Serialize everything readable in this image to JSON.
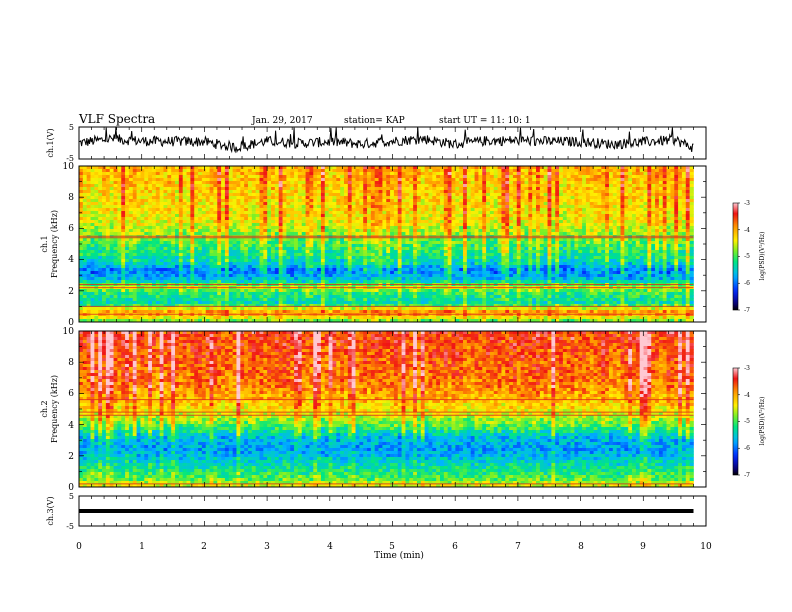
{
  "header": {
    "title": "VLF Spectra",
    "date": "Jan. 29, 2017",
    "station": "station= KAP",
    "start_ut": "start  UT  =   11: 10: 1"
  },
  "chart_data": [
    {
      "type": "line",
      "ylabel": "ch.1(V)",
      "ylim": [
        -5,
        5
      ],
      "yticks": [
        "5",
        "-5"
      ],
      "xlim": [
        0,
        10
      ],
      "series": [
        {
          "color": "#000000",
          "x": [
            0,
            0.5,
            1,
            1.5,
            2,
            2.5,
            3,
            3.5,
            4,
            4.5,
            5,
            5.5,
            6,
            6.5,
            7,
            7.5,
            8,
            8.5,
            9,
            9.5,
            9.8
          ],
          "values": [
            0,
            1.3,
            0.6,
            0.5,
            0.4,
            -1.4,
            0.6,
            -0.1,
            0.4,
            -0.3,
            0.6,
            1.3,
            -0.4,
            0.7,
            0.8,
            0.5,
            0.4,
            -0.4,
            0.3,
            1.0,
            -1.5
          ]
        }
      ]
    },
    {
      "type": "heatmap",
      "ylabel_line1": "ch.1",
      "ylabel_line2": "Frequency  (kHz)",
      "ylim": [
        0,
        10
      ],
      "yticks": [
        "0",
        "2",
        "4",
        "6",
        "8",
        "10"
      ],
      "xlim": [
        0,
        10
      ],
      "data_xmax": 9.8,
      "colorbar": {
        "label": "log(PSD)(V²/Hz)",
        "range": [
          -7,
          -3
        ],
        "ticks": [
          "-3",
          "-4",
          "-5",
          "-6",
          "-7"
        ]
      },
      "spectrum": {
        "level_by_freq": [
          [
            0,
            -5.0
          ],
          [
            0.6,
            -3.8
          ],
          [
            1.2,
            -5.4
          ],
          [
            1.9,
            -5.1
          ],
          [
            2.2,
            -4.6
          ],
          [
            2.7,
            -5.6
          ],
          [
            3.3,
            -6.0
          ],
          [
            3.8,
            -5.4
          ],
          [
            5,
            -5.0
          ],
          [
            6.5,
            -4.4
          ],
          [
            10,
            -4.1
          ]
        ],
        "tones_khz": [
          0.5,
          1.0,
          2.2,
          2.4,
          5.4,
          5.5
        ]
      }
    },
    {
      "type": "heatmap",
      "ylabel_line1": "ch.2",
      "ylabel_line2": "Frequency  (kHz)",
      "ylim": [
        0,
        10
      ],
      "yticks": [
        "0",
        "2",
        "4",
        "6",
        "8",
        "10"
      ],
      "xlim": [
        0,
        10
      ],
      "data_xmax": 9.8,
      "colorbar": {
        "label": "log(PSD)(V²/Hz)",
        "range": [
          -7,
          -3
        ],
        "ticks": [
          "-3",
          "-4",
          "-5",
          "-6",
          "-7"
        ]
      },
      "spectrum": {
        "level_by_freq": [
          [
            0,
            -4.4
          ],
          [
            0.6,
            -5.0
          ],
          [
            1.5,
            -5.4
          ],
          [
            2.4,
            -5.8
          ],
          [
            3.2,
            -5.6
          ],
          [
            4,
            -4.9
          ],
          [
            5,
            -4.3
          ],
          [
            6.5,
            -3.8
          ],
          [
            10,
            -3.5
          ]
        ],
        "tones_khz": [
          0.2,
          4.6,
          4.8,
          5.6
        ]
      }
    },
    {
      "type": "line",
      "ylabel": "ch.3(V)",
      "ylim": [
        -5,
        5
      ],
      "yticks": [
        "5",
        "-5"
      ],
      "xlim": [
        0,
        10
      ],
      "xlabel": "Time  (min)",
      "xticks": [
        "0",
        "1",
        "2",
        "3",
        "4",
        "5",
        "6",
        "7",
        "8",
        "9",
        "10"
      ],
      "series": [
        {
          "color": "#000000",
          "x": [
            0,
            9.8
          ],
          "values": [
            0,
            0
          ]
        }
      ]
    }
  ]
}
